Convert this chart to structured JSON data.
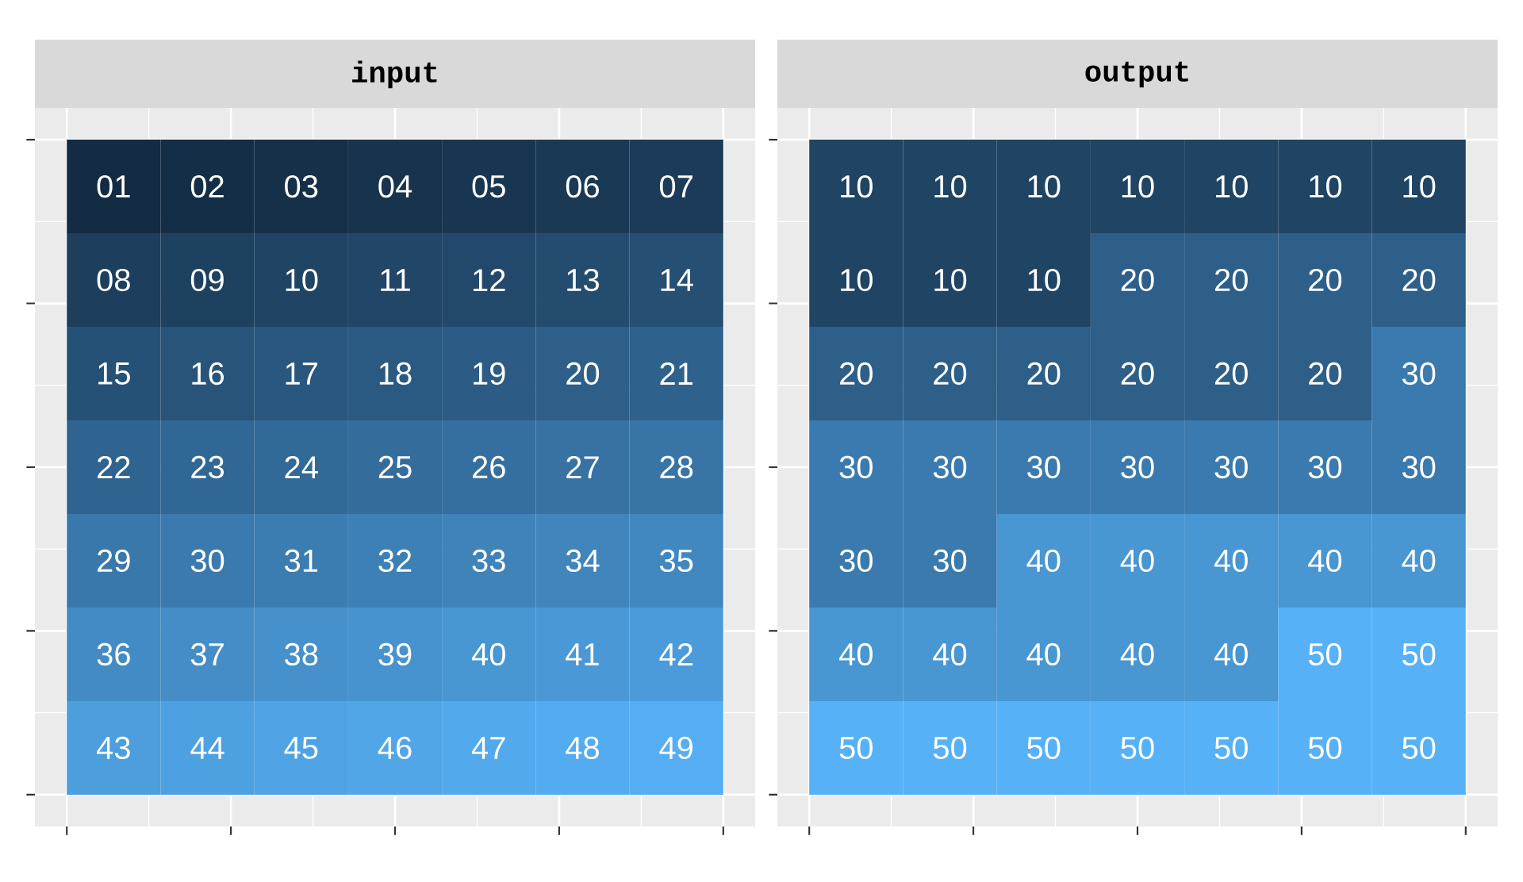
{
  "chart_data": [
    {
      "type": "heatmap",
      "title": "input",
      "categories": [
        null,
        null,
        null,
        null,
        null,
        null,
        null
      ],
      "y_categories": [
        null,
        null,
        null,
        null,
        null,
        null,
        null
      ],
      "cells": [
        [
          1,
          2,
          3,
          4,
          5,
          6,
          7
        ],
        [
          8,
          9,
          10,
          11,
          12,
          13,
          14
        ],
        [
          15,
          16,
          17,
          18,
          19,
          20,
          21
        ],
        [
          22,
          23,
          24,
          25,
          26,
          27,
          28
        ],
        [
          29,
          30,
          31,
          32,
          33,
          34,
          35
        ],
        [
          36,
          37,
          38,
          39,
          40,
          41,
          42
        ],
        [
          43,
          44,
          45,
          46,
          47,
          48,
          49
        ]
      ],
      "cell_labels": [
        [
          "01",
          "02",
          "03",
          "04",
          "05",
          "06",
          "07"
        ],
        [
          "08",
          "09",
          "10",
          "11",
          "12",
          "13",
          "14"
        ],
        [
          "15",
          "16",
          "17",
          "18",
          "19",
          "20",
          "21"
        ],
        [
          "22",
          "23",
          "24",
          "25",
          "26",
          "27",
          "28"
        ],
        [
          "29",
          "30",
          "31",
          "32",
          "33",
          "34",
          "35"
        ],
        [
          "36",
          "37",
          "38",
          "39",
          "40",
          "41",
          "42"
        ],
        [
          "43",
          "44",
          "45",
          "46",
          "47",
          "48",
          "49"
        ]
      ],
      "grid": true
    },
    {
      "type": "heatmap",
      "title": "output",
      "categories": [
        null,
        null,
        null,
        null,
        null,
        null,
        null
      ],
      "y_categories": [
        null,
        null,
        null,
        null,
        null,
        null,
        null
      ],
      "cells": [
        [
          10,
          10,
          10,
          10,
          10,
          10,
          10
        ],
        [
          10,
          10,
          10,
          20,
          20,
          20,
          20
        ],
        [
          20,
          20,
          20,
          20,
          20,
          20,
          30
        ],
        [
          30,
          30,
          30,
          30,
          30,
          30,
          30
        ],
        [
          30,
          30,
          40,
          40,
          40,
          40,
          40
        ],
        [
          40,
          40,
          40,
          40,
          40,
          50,
          50
        ],
        [
          50,
          50,
          50,
          50,
          50,
          50,
          50
        ]
      ],
      "data_labels": true,
      "grid": true
    }
  ]
}
